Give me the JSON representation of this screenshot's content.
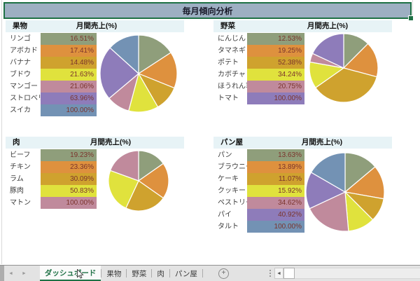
{
  "title_bar": {
    "text": "毎月傾向分析"
  },
  "colors": {
    "palette": [
      "#8f9e7b",
      "#de913e",
      "#cfa22e",
      "#e0e23d",
      "#c08a9c",
      "#8e7cba",
      "#7392b4"
    ],
    "selection_green": "#1e7145",
    "title_bg": "#9dafc2",
    "header_band_bg": "#e7f3f6",
    "value_text": "#7b342c"
  },
  "sections": [
    {
      "name": "果物",
      "value_header": "月間売上(%)",
      "items": [
        {
          "label": "リンゴ",
          "value": "16.51%"
        },
        {
          "label": "アボカド",
          "value": "17.41%"
        },
        {
          "label": "バナナ",
          "value": "14.48%"
        },
        {
          "label": "ブドウ",
          "value": "21.63%"
        },
        {
          "label": "マンゴー",
          "value": "21.06%"
        },
        {
          "label": "ストロベリー",
          "value": "63.96%"
        },
        {
          "label": "スイカ",
          "value": "100.00%"
        }
      ],
      "pie": {
        "type": "pie",
        "degrees_clockwise_from_top": [
          57,
          55,
          38,
          45,
          35,
          82,
          48
        ]
      }
    },
    {
      "name": "野菜",
      "value_header": "月間売上(%)",
      "items": [
        {
          "label": "にんじん",
          "value": "12.53%"
        },
        {
          "label": "タマネギ",
          "value": "19.25%"
        },
        {
          "label": "ポテト",
          "value": "52.38%"
        },
        {
          "label": "カボチャ",
          "value": "34.24%"
        },
        {
          "label": "ほうれん草",
          "value": "20.75%"
        },
        {
          "label": "トマト",
          "value": "100.00%"
        }
      ],
      "pie": {
        "type": "pie",
        "degrees_clockwise_from_top": [
          45,
          60,
          130,
          45,
          15,
          65
        ]
      }
    },
    {
      "name": "肉",
      "value_header": "月間売上(%)",
      "items": [
        {
          "label": "ビーフ",
          "value": "19.23%"
        },
        {
          "label": "チキン",
          "value": "23.36%"
        },
        {
          "label": "ラム",
          "value": "30.09%"
        },
        {
          "label": "豚肉",
          "value": "50.83%"
        },
        {
          "label": "マトン",
          "value": "100.00%"
        }
      ],
      "pie": {
        "type": "pie",
        "degrees_clockwise_from_top": [
          55,
          70,
          80,
          85,
          70
        ]
      }
    },
    {
      "name": "パン屋",
      "value_header": "月間売上(%)",
      "items": [
        {
          "label": "パン",
          "value": "13.63%"
        },
        {
          "label": "ブラウニー",
          "value": "13.89%"
        },
        {
          "label": "ケーキ",
          "value": "11.07%"
        },
        {
          "label": "クッキー",
          "value": "15.92%"
        },
        {
          "label": "ペストリー",
          "value": "34.62%"
        },
        {
          "label": "パイ",
          "value": "40.92%"
        },
        {
          "label": "タルト",
          "value": "100.00%"
        }
      ],
      "pie": {
        "type": "pie",
        "degrees_clockwise_from_top": [
          50,
          50,
          35,
          40,
          70,
          55,
          60
        ]
      }
    }
  ],
  "sheet_tabs": {
    "active": "ダッシュボード",
    "others": [
      "果物",
      "野菜",
      "肉",
      "パン屋"
    ],
    "add_button": "+",
    "nav_left": "◄",
    "nav_right": "►",
    "scroll_left": "◄"
  }
}
